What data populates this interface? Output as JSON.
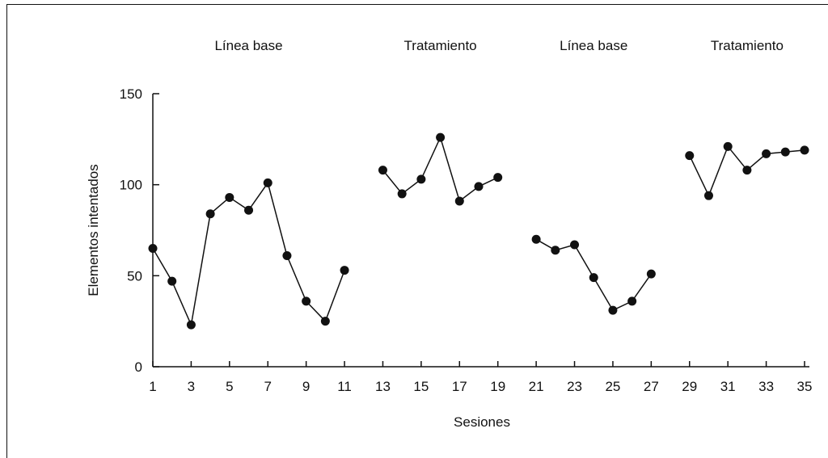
{
  "chart_data": {
    "type": "line",
    "xlabel": "Sesiones",
    "ylabel": "Elementos intentados",
    "xlim": [
      1,
      35
    ],
    "ylim": [
      0,
      150
    ],
    "x_ticks": [
      1,
      3,
      5,
      7,
      9,
      11,
      13,
      15,
      17,
      19,
      21,
      23,
      25,
      27,
      29,
      31,
      33,
      35
    ],
    "y_ticks": [
      0,
      50,
      100,
      150
    ],
    "grid": false,
    "phases": [
      {
        "label": "Línea base",
        "x": [
          1,
          2,
          3,
          4,
          5,
          6,
          7,
          8,
          9,
          10,
          11
        ],
        "y": [
          65,
          47,
          23,
          84,
          93,
          86,
          101,
          61,
          36,
          25,
          53
        ]
      },
      {
        "label": "Tratamiento",
        "x": [
          13,
          14,
          15,
          16,
          17,
          18,
          19
        ],
        "y": [
          108,
          95,
          103,
          126,
          91,
          99,
          104
        ]
      },
      {
        "label": "Línea base",
        "x": [
          21,
          22,
          23,
          24,
          25,
          26,
          27
        ],
        "y": [
          70,
          64,
          67,
          49,
          31,
          36,
          51
        ]
      },
      {
        "label": "Tratamiento",
        "x": [
          29,
          30,
          31,
          32,
          33,
          34,
          35
        ],
        "y": [
          116,
          94,
          121,
          108,
          117,
          118,
          119
        ]
      }
    ]
  }
}
